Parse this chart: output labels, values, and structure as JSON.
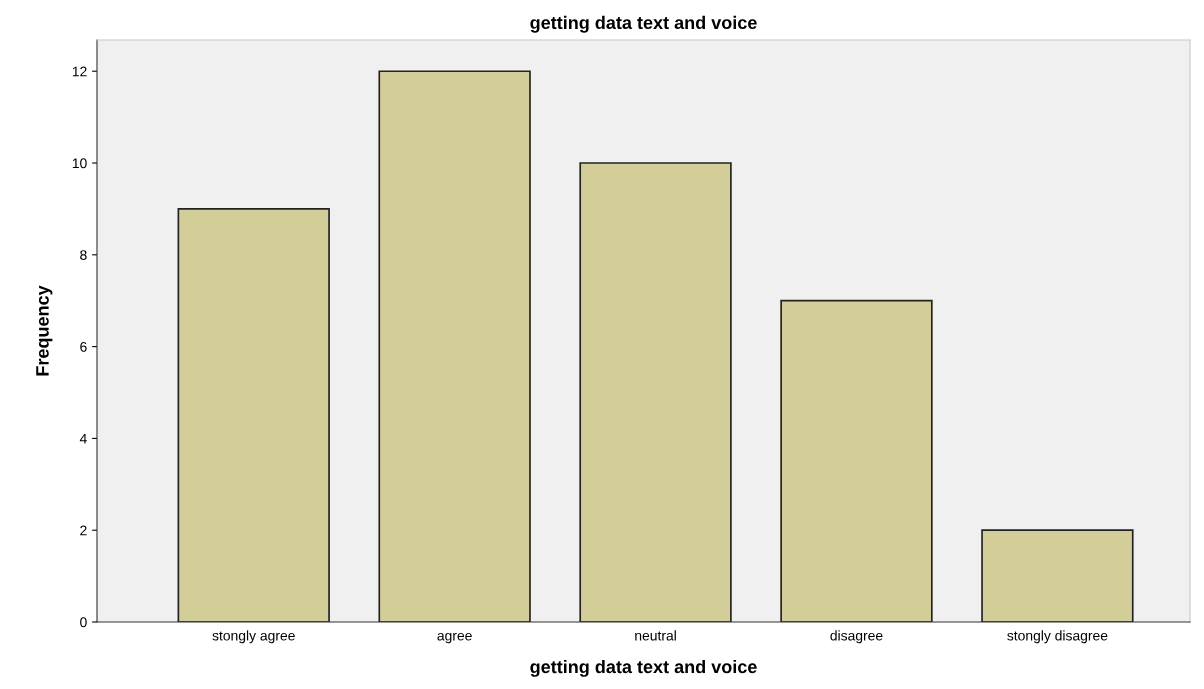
{
  "chart_data": {
    "type": "bar",
    "title": "getting data text and voice",
    "xlabel": "getting data text and voice",
    "ylabel": "Frequency",
    "categories": [
      "stongly agree",
      "agree",
      "neutral",
      "disagree",
      "stongly disagree"
    ],
    "values": [
      9,
      12,
      10,
      7,
      2
    ],
    "color": "#d3ce97",
    "ylim": [
      0,
      12.68
    ],
    "yticks": [
      0,
      2,
      4,
      6,
      8,
      10,
      12
    ],
    "grid": false
  }
}
